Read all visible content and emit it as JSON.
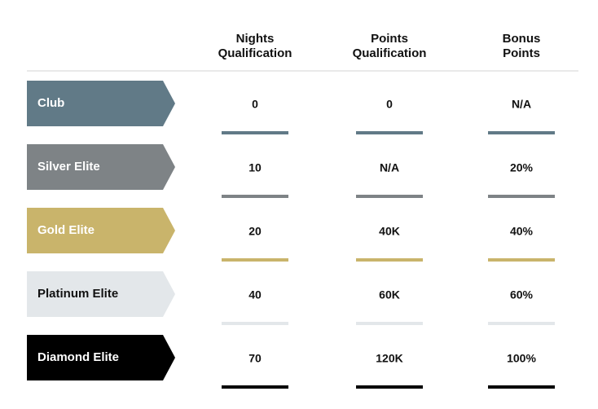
{
  "header": {
    "columns": [
      [
        "Nights",
        "Qualification"
      ],
      [
        "Points",
        "Qualification"
      ],
      [
        "Bonus",
        "Points"
      ]
    ]
  },
  "rows": [
    {
      "tier": "Club",
      "color": "#617a87",
      "text_color": "#ffffff",
      "values": [
        "0",
        "0",
        "N/A"
      ]
    },
    {
      "tier": "Silver Elite",
      "color": "#7e8386",
      "text_color": "#ffffff",
      "values": [
        "10",
        "N/A",
        "20%"
      ]
    },
    {
      "tier": "Gold Elite",
      "color": "#c9b46b",
      "text_color": "#ffffff",
      "values": [
        "20",
        "40K",
        "40%"
      ]
    },
    {
      "tier": "Platinum Elite",
      "color": "#e3e7ea",
      "text_color": "#111111",
      "values": [
        "40",
        "60K",
        "60%"
      ]
    },
    {
      "tier": "Diamond Elite",
      "color": "#000000",
      "text_color": "#ffffff",
      "values": [
        "70",
        "120K",
        "100%"
      ]
    }
  ]
}
